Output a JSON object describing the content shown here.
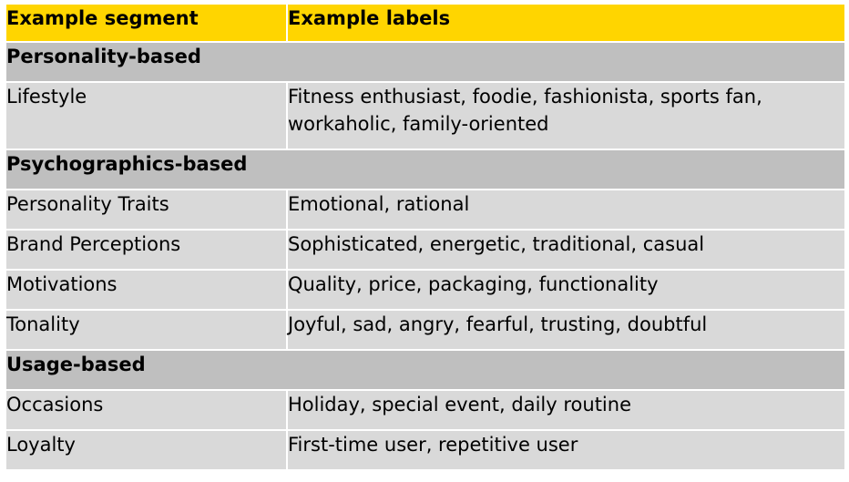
{
  "header": {
    "col1": "Example segment",
    "col2": "Example labels"
  },
  "groups": [
    {
      "title": "Personality-based",
      "rows": [
        {
          "segment": "Lifestyle",
          "labels_line1": "Fitness enthusiast, foodie, fashionista, sports fan,",
          "labels_line2": "workaholic, family-oriented"
        }
      ]
    },
    {
      "title": "Psychographics-based",
      "rows": [
        {
          "segment": "Personality Traits",
          "labels": "Emotional, rational"
        },
        {
          "segment": "Brand Perceptions",
          "labels": "Sophisticated, energetic, traditional, casual"
        },
        {
          "segment": "Motivations",
          "labels": "Quality, price, packaging, functionality"
        },
        {
          "segment": "Tonality",
          "labels": "Joyful, sad, angry, fearful, trusting, doubtful"
        }
      ]
    },
    {
      "title": "Usage-based",
      "rows": [
        {
          "segment": "Occasions",
          "labels": "Holiday, special event, daily routine"
        },
        {
          "segment": "Loyalty",
          "labels": "First-time user, repetitive user"
        }
      ]
    }
  ],
  "colors": {
    "header_bg": "#ffd500",
    "group_bg": "#bfbfbf",
    "row_bg": "#d9d9d9"
  }
}
